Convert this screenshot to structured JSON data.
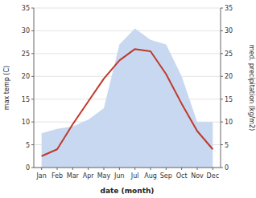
{
  "chart_data": {
    "type": "line",
    "categories": [
      "Jan",
      "Feb",
      "Mar",
      "Apr",
      "May",
      "Jun",
      "Jul",
      "Aug",
      "Sep",
      "Oct",
      "Nov",
      "Dec"
    ],
    "x_label": "date (month)",
    "y_label": "max temp (C)",
    "y2_label": "med. precipitation (kg/m2)",
    "ylim": [
      0,
      35
    ],
    "yticks": [
      0,
      5,
      10,
      15,
      20,
      25,
      30,
      35
    ],
    "y2lim": [
      0,
      35
    ],
    "y2ticks": [
      0,
      5,
      10,
      15,
      20,
      25,
      30,
      35
    ],
    "grid": true,
    "series": [
      {
        "type": "area",
        "axis": "y2",
        "color": "#c8d8f0",
        "values": [
          7.5,
          8.5,
          9.0,
          10.5,
          13.0,
          27.0,
          30.5,
          28.0,
          27.0,
          20.0,
          10.0,
          10.0
        ]
      },
      {
        "type": "line",
        "color": "#c0392b",
        "values": [
          2.5,
          4.0,
          9.5,
          14.5,
          19.5,
          23.5,
          26.0,
          25.5,
          20.5,
          14.0,
          8.0,
          4.0
        ]
      }
    ]
  }
}
